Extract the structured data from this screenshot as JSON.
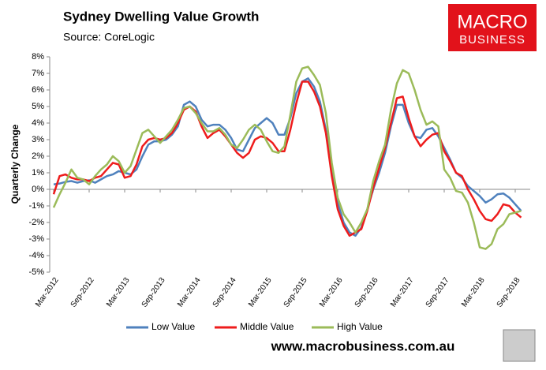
{
  "chart_data": {
    "type": "line",
    "title": "Sydney Dwelling Value Growth",
    "subtitle": "Source: CoreLogic",
    "y_label": "Quarterly Change",
    "categories": [
      "Mar-2012",
      null,
      null,
      null,
      null,
      null,
      "Sep-2012",
      null,
      null,
      null,
      null,
      null,
      "Mar-2013",
      null,
      null,
      null,
      null,
      null,
      "Sep-2013",
      null,
      null,
      null,
      null,
      null,
      "Mar-2014",
      null,
      null,
      null,
      null,
      null,
      "Sep-2014",
      null,
      null,
      null,
      null,
      null,
      "Mar-2015",
      null,
      null,
      null,
      null,
      null,
      "Sep-2015",
      null,
      null,
      null,
      null,
      null,
      "Mar-2016",
      null,
      null,
      null,
      null,
      null,
      "Sep-2016",
      null,
      null,
      null,
      null,
      null,
      "Mar-2017",
      null,
      null,
      null,
      null,
      null,
      "Sep-2017",
      null,
      null,
      null,
      null,
      null,
      "Mar-2018",
      null,
      null,
      null,
      null,
      null,
      "Sep-2018",
      null
    ],
    "series": [
      {
        "name": "Low Value",
        "color": "#4f81bd",
        "values": [
          0.3,
          0.35,
          0.45,
          0.5,
          0.4,
          0.5,
          0.55,
          0.4,
          0.6,
          0.8,
          0.9,
          1.1,
          1.0,
          0.9,
          1.2,
          2.0,
          2.7,
          2.9,
          2.9,
          3.0,
          3.3,
          3.8,
          5.1,
          5.3,
          5.0,
          4.2,
          3.8,
          3.9,
          3.9,
          3.6,
          3.1,
          2.4,
          2.3,
          3.0,
          3.7,
          4.0,
          4.3,
          4.0,
          3.3,
          3.3,
          4.3,
          5.8,
          6.5,
          6.7,
          6.2,
          5.3,
          3.6,
          1.2,
          -0.8,
          -2.0,
          -2.6,
          -2.8,
          -2.3,
          -1.2,
          0.0,
          1.0,
          2.2,
          3.8,
          5.1,
          5.1,
          4.0,
          3.2,
          3.1,
          3.6,
          3.7,
          3.2,
          2.5,
          1.8,
          1.0,
          0.7,
          0.2,
          -0.1,
          -0.4,
          -0.8,
          -0.6,
          -0.3,
          -0.25,
          -0.5,
          -0.9,
          -1.3
        ]
      },
      {
        "name": "Middle Value",
        "color": "#ee1c1c",
        "values": [
          -0.3,
          0.8,
          0.9,
          0.7,
          0.6,
          0.6,
          0.5,
          0.7,
          0.8,
          1.2,
          1.6,
          1.5,
          0.7,
          0.8,
          1.5,
          2.6,
          3.0,
          3.1,
          3.0,
          3.1,
          3.4,
          4.0,
          4.8,
          5.0,
          4.7,
          3.8,
          3.1,
          3.4,
          3.6,
          3.2,
          2.7,
          2.2,
          1.9,
          2.2,
          3.0,
          3.2,
          3.1,
          2.8,
          2.3,
          2.3,
          3.6,
          5.2,
          6.5,
          6.5,
          5.9,
          5.0,
          3.4,
          0.8,
          -1.2,
          -2.2,
          -2.8,
          -2.6,
          -2.4,
          -1.3,
          0.1,
          1.3,
          2.5,
          4.0,
          5.5,
          5.6,
          4.3,
          3.2,
          2.6,
          3.0,
          3.3,
          3.4,
          2.3,
          1.7,
          1.0,
          0.8,
          0.0,
          -0.6,
          -1.3,
          -1.8,
          -1.9,
          -1.5,
          -0.9,
          -1.0,
          -1.4,
          -1.7
        ]
      },
      {
        "name": "High Value",
        "color": "#9bbb59",
        "values": [
          -1.1,
          -0.3,
          0.4,
          1.2,
          0.7,
          0.6,
          0.3,
          0.8,
          1.2,
          1.5,
          2.0,
          1.7,
          1.0,
          1.4,
          2.4,
          3.4,
          3.6,
          3.2,
          2.8,
          3.2,
          3.6,
          4.2,
          4.9,
          5.0,
          4.6,
          4.0,
          3.5,
          3.5,
          3.7,
          3.3,
          2.7,
          2.5,
          3.0,
          3.6,
          3.9,
          3.6,
          2.9,
          2.3,
          2.2,
          2.6,
          4.5,
          6.5,
          7.3,
          7.4,
          6.9,
          6.3,
          4.6,
          1.6,
          -0.5,
          -1.5,
          -2.0,
          -2.6,
          -2.0,
          -1.2,
          0.5,
          1.7,
          2.7,
          4.8,
          6.4,
          7.2,
          7.0,
          6.0,
          4.8,
          3.9,
          4.1,
          3.8,
          1.2,
          0.7,
          -0.1,
          -0.2,
          -0.8,
          -2.0,
          -3.5,
          -3.6,
          -3.3,
          -2.4,
          -2.1,
          -1.5,
          -1.4,
          -1.3
        ]
      }
    ],
    "ylim": [
      -5,
      8
    ],
    "yticks": [
      {
        "value": -5,
        "label": "-5%"
      },
      {
        "value": -4,
        "label": "-4%"
      },
      {
        "value": -3,
        "label": "-3%"
      },
      {
        "value": -2,
        "label": "-2%"
      },
      {
        "value": -1,
        "label": "-1%"
      },
      {
        "value": 0,
        "label": "0%"
      },
      {
        "value": 1,
        "label": "1%"
      },
      {
        "value": 2,
        "label": "2%"
      },
      {
        "value": 3,
        "label": "3%"
      },
      {
        "value": 4,
        "label": "4%"
      },
      {
        "value": 5,
        "label": "5%"
      },
      {
        "value": 6,
        "label": "6%"
      },
      {
        "value": 7,
        "label": "7%"
      },
      {
        "value": 8,
        "label": "8%"
      }
    ],
    "grid": false,
    "legend": "bottom"
  },
  "branding": {
    "logo": [
      "MACRO",
      "BUSINESS"
    ],
    "url": "www.macrobusiness.com.au"
  }
}
